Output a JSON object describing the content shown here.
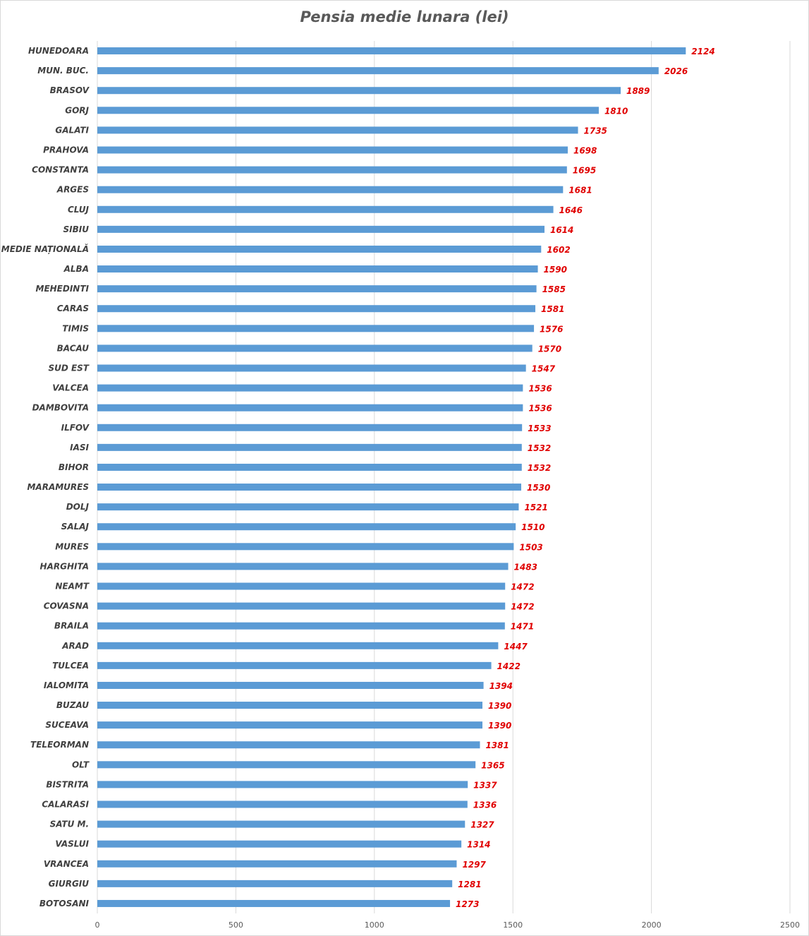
{
  "chart_data": {
    "type": "bar",
    "orientation": "horizontal",
    "title": "Pensia medie lunara (lei)",
    "xlabel": "",
    "ylabel": "",
    "xlim": [
      0,
      2500
    ],
    "xticks": [
      0,
      500,
      1000,
      1500,
      2000,
      2500
    ],
    "grid": "vertical",
    "bar_color": "#5b9bd5",
    "label_color": "#e00000",
    "categories": [
      "HUNEDOARA",
      "MUN. BUC.",
      "BRASOV",
      "GORJ",
      "GALATI",
      "PRAHOVA",
      "CONSTANTA",
      "ARGES",
      "CLUJ",
      "SIBIU",
      "MEDIE NAȚIONALĂ",
      "ALBA",
      "MEHEDINTI",
      "CARAS",
      "TIMIS",
      "BACAU",
      "SUD EST",
      "VALCEA",
      "DAMBOVITA",
      "ILFOV",
      "IASI",
      "BIHOR",
      "MARAMURES",
      "DOLJ",
      "SALAJ",
      "MURES",
      "HARGHITA",
      "NEAMT",
      "COVASNA",
      "BRAILA",
      "ARAD",
      "TULCEA",
      "IALOMITA",
      "BUZAU",
      "SUCEAVA",
      "TELEORMAN",
      "OLT",
      "BISTRITA",
      "CALARASI",
      "SATU M.",
      "VASLUI",
      "VRANCEA",
      "GIURGIU",
      "BOTOSANI"
    ],
    "values": [
      2124,
      2026,
      1889,
      1810,
      1735,
      1698,
      1695,
      1681,
      1646,
      1614,
      1602,
      1590,
      1585,
      1581,
      1576,
      1570,
      1547,
      1536,
      1536,
      1533,
      1532,
      1532,
      1530,
      1521,
      1510,
      1503,
      1483,
      1472,
      1472,
      1471,
      1447,
      1422,
      1394,
      1390,
      1390,
      1381,
      1365,
      1337,
      1336,
      1327,
      1314,
      1297,
      1281,
      1273
    ]
  }
}
